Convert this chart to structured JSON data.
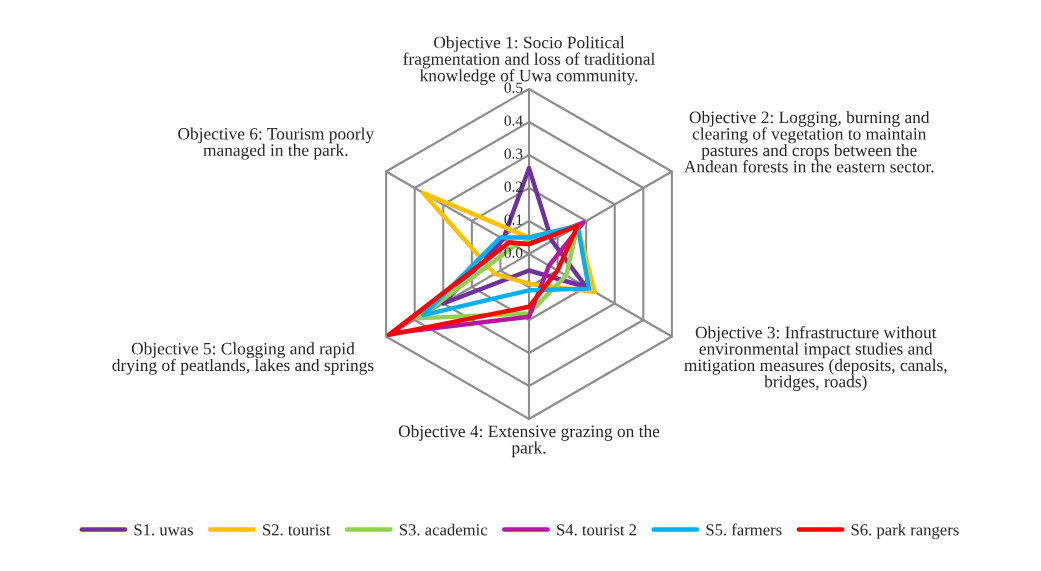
{
  "chart_data": {
    "type": "radar",
    "categories": [
      "Objective 1: Socio Political\nfragmentation and loss of traditional\nknowledge of Uwa community.",
      "Objective 2: Logging, burning and\nclearing of vegetation to maintain\npastures and crops between the\nAndean forests in the eastern sector.",
      "Objective 3: Infrastructure without\nenvironmental impact studies and\nmitigation measures (deposits, canals,\nbridges, roads)",
      "Objective 4: Extensive grazing on the\npark.",
      "Objective 5: Clogging and rapid\ndrying of peatlands, lakes and springs",
      "Objective 6: Tourism poorly\nmanaged in the park."
    ],
    "series": [
      {
        "name": "S1. uwas",
        "color": "#7030a0",
        "values": [
          0.26,
          0.08,
          0.2,
          0.05,
          0.3,
          0.09
        ]
      },
      {
        "name": "S2. tourist",
        "color": "#ffc000",
        "values": [
          0.05,
          0.17,
          0.23,
          0.09,
          0.12,
          0.37
        ]
      },
      {
        "name": "S3. academic",
        "color": "#92d050",
        "values": [
          0.04,
          0.17,
          0.13,
          0.18,
          0.39,
          0.05
        ]
      },
      {
        "name": "S4. tourist 2",
        "color": "#b5179e",
        "values": [
          0.03,
          0.19,
          0.07,
          0.19,
          0.48,
          0.07
        ]
      },
      {
        "name": "S5. farmers",
        "color": "#00b0f0",
        "values": [
          0.05,
          0.17,
          0.21,
          0.11,
          0.37,
          0.1
        ]
      },
      {
        "name": "S6. park rangers",
        "color": "#ff0000",
        "values": [
          0.03,
          0.17,
          0.1,
          0.16,
          0.49,
          0.07
        ]
      }
    ],
    "ylim": [
      0,
      0.5
    ],
    "yticks": [
      {
        "value": 0,
        "label": "0.0"
      },
      0.1,
      0.2,
      0.3,
      0.4,
      0.5
    ],
    "grid": true,
    "legend": "bottom",
    "line_style": "solid"
  }
}
